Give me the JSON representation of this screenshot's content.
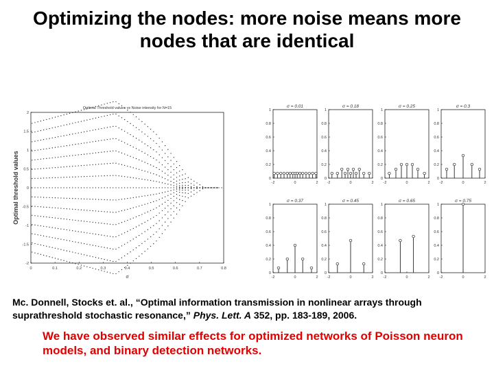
{
  "slide": {
    "title_line1": "Optimizing the nodes: more noise means more",
    "title_line2": "nodes that are identical",
    "citation_prefix": "Mc. Donnell, Stocks et. al., “Optimal information transmission in nonlinear arrays through suprathreshold stochastic resonance,” ",
    "citation_journal": "Phys. Lett. A",
    "citation_suffix": " 352, pp. 183-189, 2006.",
    "note": "We have observed similar effects for optimized networks of Poisson neuron models, and binary detection networks."
  },
  "chart_data": [
    {
      "type": "scatter",
      "title": "Optimal Threshold values vs Noise intensity for N=15",
      "xlabel": "σ",
      "ylabel": "Optimal threshold values",
      "xlim": [
        0,
        0.8
      ],
      "ylim": [
        -2,
        2
      ],
      "x_ticks": [
        "0",
        "0.1",
        "0.2",
        "0.3",
        "0.4",
        "0.5",
        "0.6",
        "0.7",
        "0.8"
      ],
      "y_ticks": [
        "-2",
        "-1.5",
        "-1",
        "-0.5",
        "0",
        "0.5",
        "1",
        "1.5",
        "2"
      ],
      "grid": false
    },
    {
      "type": "scatter",
      "title": "σ = 0.01",
      "xlim": [
        -2,
        2
      ],
      "ylim": [
        0,
        1
      ],
      "x_ticks": [
        "-2",
        "0",
        "2"
      ],
      "y_ticks": [
        "0",
        "0.2",
        "0.4",
        "0.6",
        "0.8",
        "1"
      ],
      "x": [
        -1.9,
        -1.6,
        -1.3,
        -1.0,
        -0.7,
        -0.45,
        -0.2,
        0.0,
        0.2,
        0.45,
        0.7,
        1.0,
        1.3,
        1.6,
        1.9
      ],
      "values": [
        0.07,
        0.07,
        0.07,
        0.07,
        0.07,
        0.07,
        0.07,
        0.07,
        0.07,
        0.07,
        0.07,
        0.07,
        0.07,
        0.07,
        0.07
      ]
    },
    {
      "type": "scatter",
      "title": "σ = 0.18",
      "xlim": [
        -2,
        2
      ],
      "ylim": [
        0,
        1
      ],
      "x_ticks": [
        "-2",
        "0",
        "2"
      ],
      "y_ticks": [
        "0",
        "0.2",
        "0.4",
        "0.6",
        "0.8",
        "1"
      ],
      "x": [
        -1.7,
        -1.2,
        -0.8,
        -0.5,
        -0.25,
        0.0,
        0.25,
        0.5,
        0.8,
        1.2,
        1.7
      ],
      "values": [
        0.07,
        0.07,
        0.13,
        0.07,
        0.13,
        0.07,
        0.13,
        0.07,
        0.13,
        0.07,
        0.07
      ]
    },
    {
      "type": "scatter",
      "title": "σ = 0.25",
      "xlim": [
        -2,
        2
      ],
      "ylim": [
        0,
        1
      ],
      "x_ticks": [
        "-2",
        "0",
        "2"
      ],
      "y_ticks": [
        "0",
        "0.2",
        "0.4",
        "0.6",
        "0.8",
        "1"
      ],
      "x": [
        -1.6,
        -1.0,
        -0.5,
        0.0,
        0.5,
        1.0,
        1.6
      ],
      "values": [
        0.07,
        0.13,
        0.2,
        0.2,
        0.2,
        0.13,
        0.07
      ]
    },
    {
      "type": "scatter",
      "title": "σ = 0.3",
      "xlim": [
        -2,
        2
      ],
      "ylim": [
        0,
        1
      ],
      "x_ticks": [
        "-2",
        "0",
        "2"
      ],
      "y_ticks": [
        "0",
        "0.2",
        "0.4",
        "0.6",
        "0.8",
        "1"
      ],
      "x": [
        -1.5,
        -0.8,
        0.0,
        0.8,
        1.5
      ],
      "values": [
        0.13,
        0.2,
        0.33,
        0.2,
        0.13
      ]
    },
    {
      "type": "scatter",
      "title": "σ = 0.37",
      "xlim": [
        -2,
        2
      ],
      "ylim": [
        0,
        1
      ],
      "x_ticks": [
        "-2",
        "0",
        "2"
      ],
      "y_ticks": [
        "0",
        "0.2",
        "0.4",
        "0.6",
        "0.8",
        "1"
      ],
      "x": [
        -1.5,
        -0.7,
        0.0,
        0.7,
        1.5
      ],
      "values": [
        0.07,
        0.2,
        0.4,
        0.2,
        0.07
      ]
    },
    {
      "type": "scatter",
      "title": "σ = 0.45",
      "xlim": [
        -2,
        2
      ],
      "ylim": [
        0,
        1
      ],
      "x_ticks": [
        "-2",
        "0",
        "2"
      ],
      "y_ticks": [
        "0",
        "0.2",
        "0.4",
        "0.6",
        "0.8",
        "1"
      ],
      "x": [
        -1.2,
        0.0,
        1.2
      ],
      "values": [
        0.13,
        0.47,
        0.13
      ]
    },
    {
      "type": "scatter",
      "title": "σ = 0.65",
      "xlim": [
        -2,
        2
      ],
      "ylim": [
        0,
        1
      ],
      "x_ticks": [
        "-2",
        "0",
        "2"
      ],
      "y_ticks": [
        "0",
        "0.2",
        "0.4",
        "0.6",
        "0.8",
        "1"
      ],
      "x": [
        -0.6,
        0.6
      ],
      "values": [
        0.47,
        0.53
      ]
    },
    {
      "type": "scatter",
      "title": "σ = 0.75",
      "xlim": [
        -2,
        2
      ],
      "ylim": [
        0,
        1
      ],
      "x_ticks": [
        "-2",
        "0",
        "2"
      ],
      "y_ticks": [
        "0",
        "0.2",
        "0.4",
        "0.6",
        "0.8",
        "1"
      ],
      "x": [
        0.0
      ],
      "values": [
        1.0
      ]
    }
  ]
}
